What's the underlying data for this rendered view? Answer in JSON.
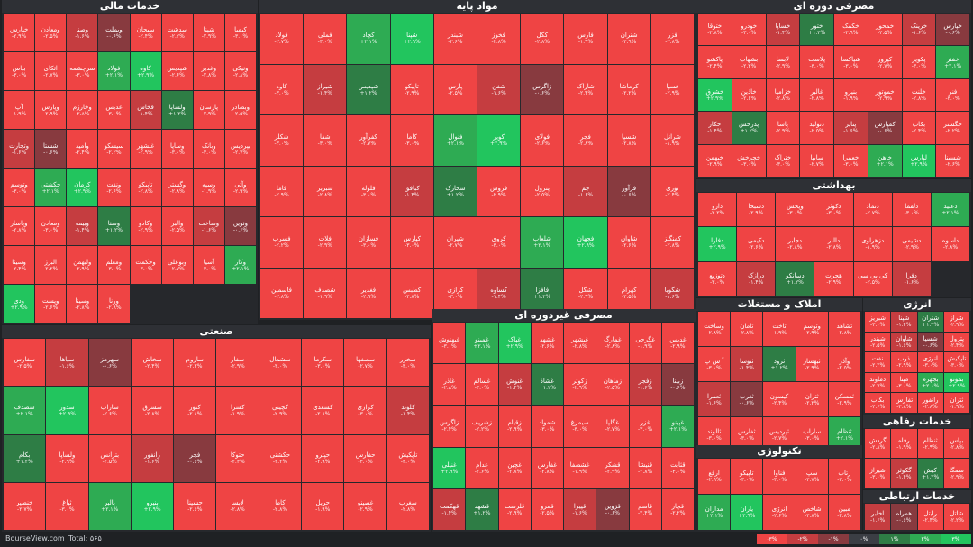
{
  "sectors": [
    {
      "key": "financial",
      "title": "خدمات مالی"
    },
    {
      "key": "base",
      "title": "مواد پایه"
    },
    {
      "key": "consumer",
      "title": "مصرفی دوره ای"
    },
    {
      "key": "health",
      "title": "بهداشتی"
    },
    {
      "key": "realestate",
      "title": "املاک و مستغلات"
    },
    {
      "key": "industry",
      "title": "صنعتی"
    },
    {
      "key": "nondurable",
      "title": "مصرفی غیردوره ای"
    },
    {
      "key": "energy",
      "title": "انرژی"
    },
    {
      "key": "tech",
      "title": "تکنولوژی"
    },
    {
      "key": "welfare",
      "title": "خدمات رفاهی"
    },
    {
      "key": "telecom",
      "title": "خدمات ارتباطی"
    }
  ],
  "footer": {
    "brand": "BourseView.com",
    "total": "Total: ۵۶۵"
  },
  "legend": [
    {
      "label": "-۳%",
      "color": "#ef4444"
    },
    {
      "label": "-۲%",
      "color": "#c53d40"
    },
    {
      "label": "-۱%",
      "color": "#883a3f"
    },
    {
      "label": "۰%",
      "color": "#3b3e44"
    },
    {
      "label": "۱%",
      "color": "#2e7d45"
    },
    {
      "label": "۲%",
      "color": "#2eab53"
    },
    {
      "label": "۳%",
      "color": "#22c55e"
    }
  ],
  "colors": {
    "red": "#ef4444",
    "red_mid": "#c53d40",
    "red_dark": "#883a3f",
    "neutral": "#3b3e44",
    "green_dark": "#2e7d45",
    "green_mid": "#2eab53",
    "green": "#22c55e"
  },
  "symbols": {
    "financial": [
      "خپارس",
      "ومعادن",
      "وصنا",
      "وبملت",
      "سبحان",
      "سدشت",
      "شپنا",
      "کیمیا",
      "بپاس",
      "اتکای",
      "سرچشمه",
      "فولاد",
      "کاوه",
      "شپدیس",
      "وغدیر",
      "ونیکی",
      "آپ",
      "وپارس",
      "وخارزم",
      "غدیس",
      "فخاس",
      "ولساپا",
      "پارسان",
      "وبصادر",
      "وتجارت",
      "شستا",
      "وامید",
      "سیسکو",
      "غبشهر",
      "وساپا",
      "وبانک",
      "بپردیس",
      "وتوسم",
      "حکشتی",
      "کرمان",
      "ونفت",
      "تاپیکو",
      "وگستر",
      "وسپه",
      "وآتی",
      "وپاسار",
      "ومعادن",
      "وبیمه",
      "وسنا",
      "وکادو",
      "والبر",
      "وساخت",
      "ونوین",
      "وسینا",
      "البرز",
      "ولبهمن",
      "ومعلم",
      "وحکمت",
      "وبوعلی",
      "آسیا",
      "وکار",
      "ودی",
      "وپست",
      "وسینا",
      "ورنا"
    ],
    "base": [
      "فولاد",
      "فملی",
      "کچاد",
      "شپنا",
      "شبندر",
      "فخوز",
      "کگل",
      "فارس",
      "شتران",
      "فزر",
      "کاوه",
      "شیراز",
      "شپدیس",
      "تاپیکو",
      "پارس",
      "شفن",
      "زاگرس",
      "شاراک",
      "کرماشا",
      "فسپا",
      "شکلر",
      "شفا",
      "کفرآور",
      "کاما",
      "فنوال",
      "کویر",
      "فولای",
      "فجر",
      "شسپا",
      "شرانل",
      "فاما",
      "شبریز",
      "فلوله",
      "کبافق",
      "شخارک",
      "فروس",
      "پترول",
      "جم",
      "فرآور",
      "نوری",
      "فسرب",
      "فلات",
      "فسازان",
      "کپارس",
      "شیران",
      "کروی",
      "شلعاب",
      "فجهان",
      "شاوان",
      "کمنگنز",
      "فاسمین",
      "شصدف",
      "فغدیر",
      "کطبس",
      "کرازی",
      "کساوه",
      "فافزا",
      "شگل",
      "کهرام",
      "شگویا"
    ],
    "consumer": [
      "ختوقا",
      "خودرو",
      "خساپا",
      "ختور",
      "خکمک",
      "خمحور",
      "خرینگ",
      "خپارس",
      "پاکشو",
      "بشهاب",
      "لابسا",
      "پلاست",
      "شپاکسا",
      "کپرور",
      "پکویر",
      "خفنر",
      "خشرق",
      "خاذین",
      "خزامیا",
      "غالبر",
      "بنیرو",
      "خموتور",
      "خلنت",
      "فنر",
      "خکار",
      "پدرخش",
      "پاسا",
      "دتولید",
      "پتایر",
      "کفپارس",
      "بکاب",
      "خگستر",
      "خبهمن",
      "خچرخش",
      "ختراک",
      "سایپا",
      "خعمرا",
      "خاهن",
      "لپارس",
      "شسینا"
    ],
    "health": [
      "دارو",
      "دسبحا",
      "وپخش",
      "دکوثر",
      "دتماد",
      "دلقما",
      "دعبید",
      "دفارا",
      "دکیمی",
      "دجابر",
      "دالبر",
      "دزهراوی",
      "دشیمی",
      "داسوه",
      "دتوزیع",
      "درازک",
      "دسانکو",
      "هجرت",
      "کی بی سی",
      "دفرا"
    ],
    "realestate": [
      "وساخت",
      "ثامان",
      "ثاخت",
      "وتوسم",
      "ثشاهد",
      "آ س پ",
      "ثنوسا",
      "ثرود",
      "ثبهساز",
      "وآذر",
      "ثعمرا",
      "ثغرب",
      "کیسون",
      "ثتران",
      "ثمسکن",
      "ثالوند",
      "ثفارس",
      "ثپردیس",
      "ساراب",
      "ثنظام"
    ],
    "industry": [
      "سفارس",
      "سپاها",
      "سهرمز",
      "سخاش",
      "ساروم",
      "سفار",
      "سشمال",
      "سکرما",
      "سصفها",
      "سخزر",
      "شصدف",
      "سدور",
      "ساراب",
      "سشرق",
      "کنور",
      "کسرا",
      "کچینی",
      "کسعدی",
      "کرازی",
      "کلوند",
      "بکام",
      "ولساپا",
      "بترانس",
      "رانفور",
      "فجر",
      "حتوکا",
      "حکشتی",
      "حپترو",
      "حفارس",
      "تاپکیش",
      "خنصیر",
      "ثباغ",
      "بالبر",
      "بنیرو",
      "حسینا",
      "لابسا",
      "کاما",
      "حریل",
      "غصینو",
      "سغرب"
    ],
    "nondurable": [
      "غبهنوش",
      "غمینو",
      "غپاک",
      "غشهد",
      "غبشهر",
      "غمارگ",
      "غگرجی",
      "غدیس",
      "غاذر",
      "غسالم",
      "غنوش",
      "غشاذ",
      "زکوثر",
      "زماهان",
      "زفجر",
      "زبینا",
      "زاگرس",
      "زشریف",
      "زقیام",
      "شمواد",
      "سیمرغ",
      "غگلپا",
      "غزر",
      "غپینو",
      "غنیلی",
      "غدام",
      "غچین",
      "غفارس",
      "غشصفا",
      "قشکر",
      "قنیشا",
      "قثابت",
      "قهکمت",
      "قشهد",
      "قلرست",
      "قمرو",
      "قپیرا",
      "قزوین",
      "قاسم",
      "قچار"
    ],
    "energy": [
      "شبریز",
      "شپنا",
      "شتران",
      "شراز",
      "شبندر",
      "شاوان",
      "شسپا",
      "پترول",
      "نفت",
      "ذوب",
      "انرژی",
      "تاپکیش",
      "دماوند",
      "مپنا",
      "بجهرم",
      "بموتو",
      "بکاب",
      "تفارس",
      "رانفور",
      "ثتران"
    ],
    "tech": [
      "ارفع",
      "تاپیکو",
      "فناوا",
      "سپ",
      "رتاپ",
      "مداران",
      "یاران",
      "انرژی",
      "شاخص",
      "مبین"
    ],
    "welfare": [
      "گردش",
      "رفاه",
      "ثنظام",
      "بپاس",
      "شیراز",
      "گکوثر",
      "کیش",
      "سمگا"
    ],
    "telecom": [
      "اخابر",
      "همراه",
      "رایتل",
      "شاتل"
    ]
  }
}
